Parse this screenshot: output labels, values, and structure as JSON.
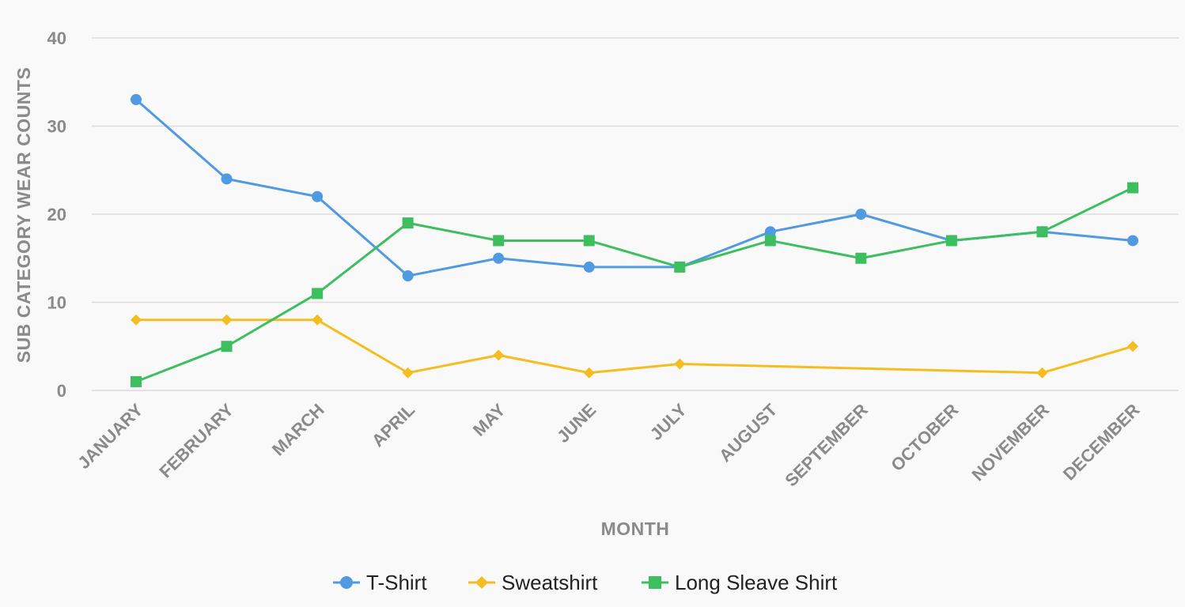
{
  "chart_data": {
    "type": "line",
    "title": "",
    "xlabel": "MONTH",
    "ylabel": "SUB CATEGORY WEAR COUNTS",
    "ylim": [
      0,
      40
    ],
    "yticks": [
      0,
      10,
      20,
      30,
      40
    ],
    "grid": true,
    "legend_position": "bottom",
    "categories": [
      "JANUARY",
      "FEBRUARY",
      "MARCH",
      "APRIL",
      "MAY",
      "JUNE",
      "JULY",
      "AUGUST",
      "SEPTEMBER",
      "OCTOBER",
      "NOVEMBER",
      "DECEMBER"
    ],
    "series": [
      {
        "name": "T-Shirt",
        "color": "#4f9ae0",
        "marker": "circle",
        "values": [
          33,
          24,
          22,
          13,
          15,
          14,
          14,
          18,
          20,
          17,
          18,
          17
        ]
      },
      {
        "name": "Sweatshirt",
        "color": "#f5bd1f",
        "marker": "diamond",
        "values": [
          8,
          8,
          8,
          2,
          4,
          2,
          3,
          null,
          null,
          null,
          2,
          5
        ]
      },
      {
        "name": "Long Sleave Shirt",
        "color": "#3dbf5f",
        "marker": "square",
        "values": [
          1,
          5,
          11,
          19,
          17,
          17,
          14,
          17,
          15,
          17,
          18,
          23
        ]
      }
    ]
  }
}
